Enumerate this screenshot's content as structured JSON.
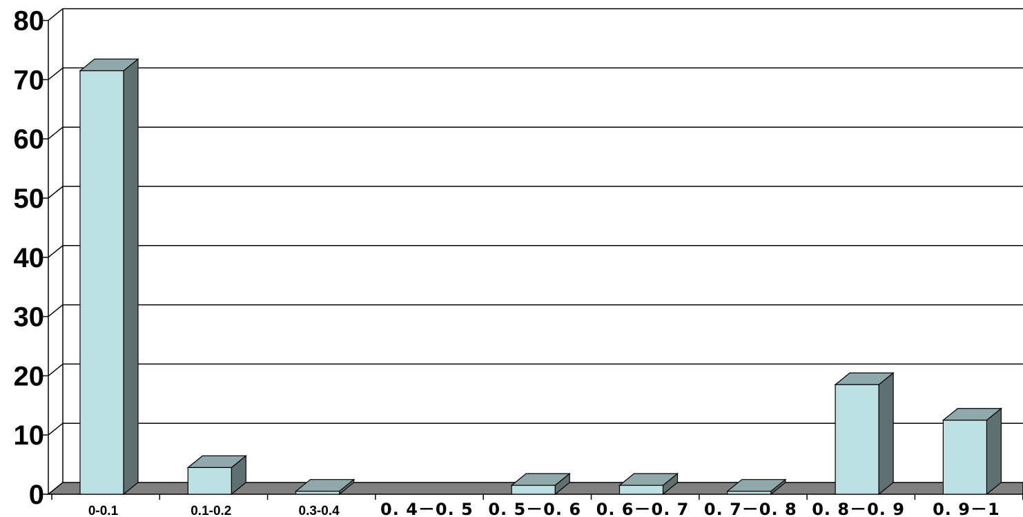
{
  "chart_data": {
    "type": "bar",
    "categories": [
      "0-0.1",
      "0.1-0.2",
      "0.3-0.4",
      "0. 4－0. 5",
      "0. 5－0. 6",
      "0. 6－0. 7",
      "0. 7－0. 8",
      "0. 8－0. 9",
      "0. 9－1"
    ],
    "values": [
      71.5,
      4.5,
      0.5,
      0,
      1.5,
      1.5,
      0.5,
      18.5,
      12.5
    ],
    "ylim": [
      0,
      80
    ],
    "yticks": [
      0,
      10,
      20,
      30,
      40,
      50,
      60,
      70,
      80
    ],
    "grid": true,
    "legend": "none",
    "colors": {
      "bar_front": "#bde0e3",
      "bar_top": "#8fa8aa",
      "bar_side": "#5f7070",
      "floor": "#808080",
      "grid": "#000000"
    }
  }
}
